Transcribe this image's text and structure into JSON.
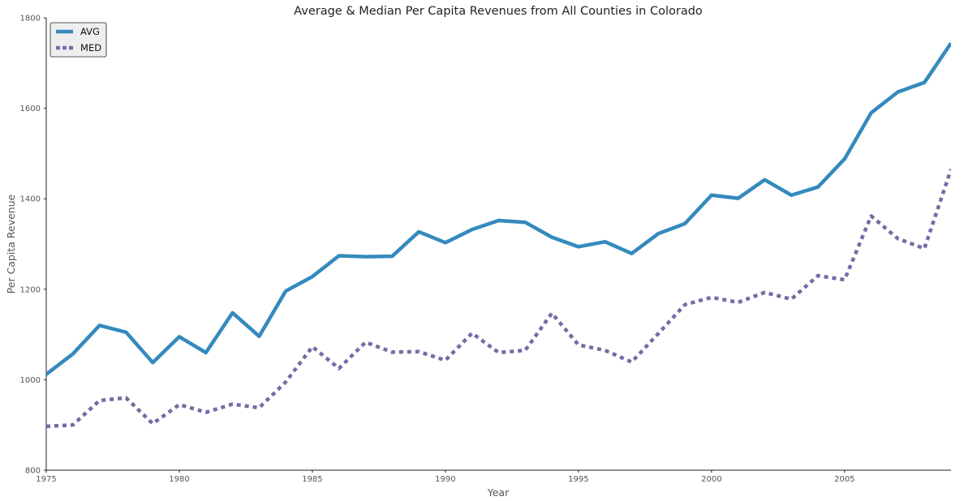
{
  "chart_data": {
    "type": "line",
    "title": "Average & Median Per Capita Revenues from All Counties in Colorado",
    "xlabel": "Year",
    "ylabel": "Per Capita Revenue",
    "xlim": [
      1975,
      2009
    ],
    "ylim": [
      800,
      1800
    ],
    "x_ticks": [
      1975,
      1980,
      1985,
      1990,
      1995,
      2000,
      2005
    ],
    "y_ticks": [
      800,
      1000,
      1200,
      1400,
      1600,
      1800
    ],
    "grid": false,
    "legend_position": "top-left",
    "x": [
      1975,
      1976,
      1977,
      1978,
      1979,
      1980,
      1981,
      1982,
      1983,
      1984,
      1985,
      1986,
      1987,
      1988,
      1989,
      1990,
      1991,
      1992,
      1993,
      1994,
      1995,
      1996,
      1997,
      1998,
      1999,
      2000,
      2001,
      2002,
      2003,
      2004,
      2005,
      2006,
      2007,
      2008,
      2009
    ],
    "series": [
      {
        "name": "AVG",
        "color": "#348ABD",
        "style": "solid",
        "values": [
          1012,
          1057,
          1120,
          1105,
          1038,
          1095,
          1060,
          1148,
          1096,
          1196,
          1228,
          1274,
          1272,
          1273,
          1327,
          1303,
          1332,
          1352,
          1348,
          1315,
          1294,
          1305,
          1279,
          1323,
          1345,
          1408,
          1401,
          1442,
          1408,
          1426,
          1488,
          1590,
          1636,
          1657,
          1744
        ]
      },
      {
        "name": "MED",
        "color": "#7A68A6",
        "style": "dotted",
        "values": [
          897,
          900,
          954,
          960,
          903,
          945,
          928,
          946,
          938,
          995,
          1073,
          1025,
          1083,
          1061,
          1062,
          1043,
          1103,
          1060,
          1065,
          1147,
          1077,
          1065,
          1039,
          1102,
          1166,
          1182,
          1171,
          1193,
          1178,
          1230,
          1221,
          1362,
          1312,
          1290,
          1465
        ]
      }
    ]
  }
}
